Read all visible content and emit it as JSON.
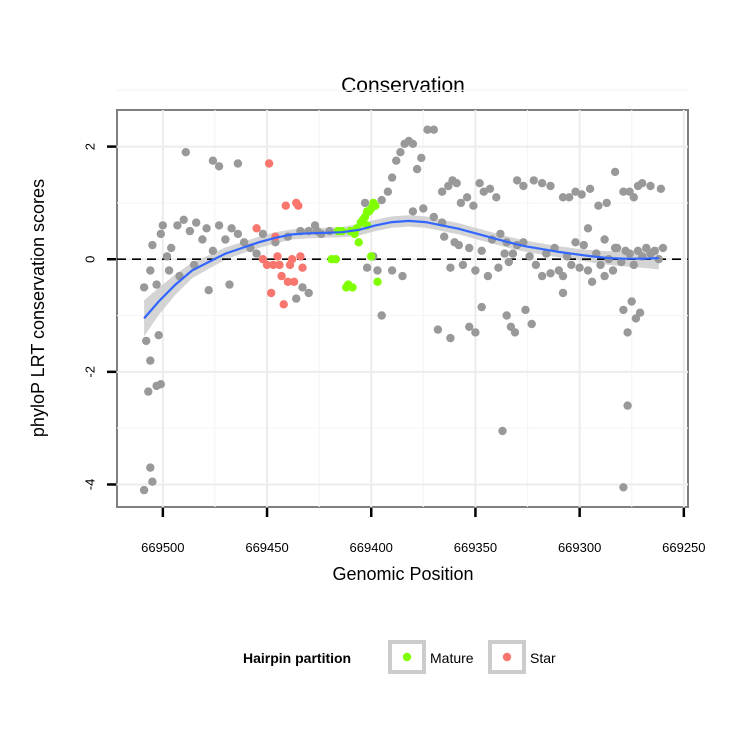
{
  "chart_data": {
    "type": "scatter",
    "title": "Conservation",
    "xlabel": "Genomic Position",
    "ylabel": "phyloP LRT conservation scores",
    "x_reversed": true,
    "xlim": [
      669522,
      669248
    ],
    "ylim": [
      -4.4,
      2.65
    ],
    "x_ticks": [
      669500,
      669450,
      669400,
      669350,
      669300,
      669250
    ],
    "y_ticks": [
      2,
      0,
      -2,
      -4
    ],
    "grid": true,
    "reference_line": {
      "y": 0,
      "style": "dashed"
    },
    "background_color": "#9a9a9a",
    "smooth_color": "#3366ff",
    "ribbon_color": "#cccccc",
    "legend": {
      "title": "Hairpin partition",
      "placement": "bottom",
      "items": [
        {
          "label": "Mature",
          "color": "#7fff00"
        },
        {
          "label": "Star",
          "color": "#f8766d"
        }
      ]
    },
    "series": [
      {
        "name": "",
        "color": "#999999",
        "points": [
          [
            669509,
            -4.1
          ],
          [
            669506,
            -3.7
          ],
          [
            669505,
            -3.95
          ],
          [
            669507,
            -2.35
          ],
          [
            669503,
            -2.25
          ],
          [
            669501,
            -2.22
          ],
          [
            669506,
            -1.8
          ],
          [
            669508,
            -1.45
          ],
          [
            669502,
            -1.35
          ],
          [
            669509,
            -0.5
          ],
          [
            669503,
            -0.45
          ],
          [
            669506,
            -0.2
          ],
          [
            669505,
            0.25
          ],
          [
            669501,
            0.45
          ],
          [
            669500,
            0.6
          ],
          [
            669498,
            0.05
          ],
          [
            669496,
            0.2
          ],
          [
            669493,
            0.6
          ],
          [
            669490,
            0.7
          ],
          [
            669487,
            0.5
          ],
          [
            669484,
            0.65
          ],
          [
            669481,
            0.35
          ],
          [
            669479,
            0.55
          ],
          [
            669476,
            0.15
          ],
          [
            669473,
            0.6
          ],
          [
            669470,
            0.35
          ],
          [
            669467,
            0.55
          ],
          [
            669464,
            0.45
          ],
          [
            669461,
            0.3
          ],
          [
            669458,
            0.2
          ],
          [
            669455,
            0.1
          ],
          [
            669497,
            -0.2
          ],
          [
            669492,
            -0.3
          ],
          [
            669485,
            -0.1
          ],
          [
            669478,
            -0.55
          ],
          [
            669468,
            -0.45
          ],
          [
            669489,
            1.9
          ],
          [
            669476,
            1.75
          ],
          [
            669473,
            1.65
          ],
          [
            669464,
            1.7
          ],
          [
            669452,
            0.45
          ],
          [
            669446,
            0.3
          ],
          [
            669440,
            0.4
          ],
          [
            669434,
            0.5
          ],
          [
            669430,
            0.5
          ],
          [
            669427,
            0.6
          ],
          [
            669424,
            0.45
          ],
          [
            669433,
            -0.5
          ],
          [
            669430,
            -0.6
          ],
          [
            669436,
            -0.7
          ],
          [
            669426,
            0.5
          ],
          [
            669420,
            0.5
          ],
          [
            669403,
            1.0
          ],
          [
            669402,
            -0.15
          ],
          [
            669399,
            0.05
          ],
          [
            669397,
            -0.2
          ],
          [
            669395,
            1.05
          ],
          [
            669392,
            1.2
          ],
          [
            669390,
            1.45
          ],
          [
            669388,
            1.75
          ],
          [
            669386,
            1.9
          ],
          [
            669384,
            2.05
          ],
          [
            669382,
            2.1
          ],
          [
            669380,
            2.05
          ],
          [
            669378,
            1.6
          ],
          [
            669376,
            1.8
          ],
          [
            669373,
            2.3
          ],
          [
            669370,
            2.3
          ],
          [
            669366,
            1.2
          ],
          [
            669363,
            1.3
          ],
          [
            669361,
            1.4
          ],
          [
            669359,
            1.35
          ],
          [
            669357,
            1.0
          ],
          [
            669354,
            1.1
          ],
          [
            669351,
            0.95
          ],
          [
            669348,
            1.35
          ],
          [
            669346,
            1.2
          ],
          [
            669343,
            1.25
          ],
          [
            669340,
            1.1
          ],
          [
            669338,
            0.45
          ],
          [
            669335,
            0.3
          ],
          [
            669332,
            0.1
          ],
          [
            669330,
            0.25
          ],
          [
            669327,
            0.3
          ],
          [
            669324,
            0.05
          ],
          [
            669321,
            -0.1
          ],
          [
            669318,
            -0.3
          ],
          [
            669316,
            0.1
          ],
          [
            669314,
            -0.25
          ],
          [
            669312,
            0.2
          ],
          [
            669310,
            -0.2
          ],
          [
            669308,
            -0.3
          ],
          [
            669306,
            0.05
          ],
          [
            669304,
            -0.1
          ],
          [
            669302,
            0.3
          ],
          [
            669300,
            -0.15
          ],
          [
            669298,
            0.25
          ],
          [
            669296,
            -0.2
          ],
          [
            669294,
            -0.4
          ],
          [
            669292,
            0.1
          ],
          [
            669290,
            -0.1
          ],
          [
            669288,
            -0.3
          ],
          [
            669286,
            0.0
          ],
          [
            669284,
            -0.2
          ],
          [
            669282,
            0.2
          ],
          [
            669280,
            -0.05
          ],
          [
            669278,
            0.15
          ],
          [
            669276,
            0.1
          ],
          [
            669274,
            -0.1
          ],
          [
            669272,
            0.15
          ],
          [
            669270,
            0.05
          ],
          [
            669268,
            0.2
          ],
          [
            669266,
            0.1
          ],
          [
            669264,
            0.15
          ],
          [
            669262,
            0.0
          ],
          [
            669260,
            0.2
          ],
          [
            669365,
            0.4
          ],
          [
            669362,
            -0.15
          ],
          [
            669360,
            0.3
          ],
          [
            669358,
            0.25
          ],
          [
            669356,
            -0.1
          ],
          [
            669353,
            0.2
          ],
          [
            669350,
            -0.2
          ],
          [
            669347,
            0.15
          ],
          [
            669344,
            -0.3
          ],
          [
            669342,
            0.35
          ],
          [
            669339,
            -0.15
          ],
          [
            669336,
            0.1
          ],
          [
            669334,
            -0.05
          ],
          [
            669390,
            -0.2
          ],
          [
            669385,
            -0.3
          ],
          [
            669380,
            0.85
          ],
          [
            669375,
            0.9
          ],
          [
            669370,
            0.75
          ],
          [
            669366,
            0.65
          ],
          [
            669368,
            -1.25
          ],
          [
            669362,
            -1.4
          ],
          [
            669353,
            -1.2
          ],
          [
            669350,
            -1.3
          ],
          [
            669347,
            -0.85
          ],
          [
            669335,
            -1.0
          ],
          [
            669333,
            -1.2
          ],
          [
            669331,
            -1.3
          ],
          [
            669326,
            -0.9
          ],
          [
            669323,
            -1.15
          ],
          [
            669337,
            -3.05
          ],
          [
            669308,
            -0.6
          ],
          [
            669296,
            0.55
          ],
          [
            669288,
            0.35
          ],
          [
            669283,
            0.2
          ],
          [
            669330,
            1.4
          ],
          [
            669327,
            1.3
          ],
          [
            669322,
            1.4
          ],
          [
            669318,
            1.35
          ],
          [
            669314,
            1.3
          ],
          [
            669308,
            1.1
          ],
          [
            669305,
            1.1
          ],
          [
            669302,
            1.2
          ],
          [
            669299,
            1.15
          ],
          [
            669295,
            1.25
          ],
          [
            669291,
            0.95
          ],
          [
            669287,
            1.0
          ],
          [
            669283,
            1.55
          ],
          [
            669279,
            1.2
          ],
          [
            669276,
            1.2
          ],
          [
            669274,
            1.1
          ],
          [
            669272,
            1.3
          ],
          [
            669270,
            1.35
          ],
          [
            669266,
            1.3
          ],
          [
            669261,
            1.25
          ],
          [
            669279,
            -0.9
          ],
          [
            669277,
            -1.3
          ],
          [
            669275,
            -0.75
          ],
          [
            669273,
            -1.05
          ],
          [
            669271,
            -0.95
          ],
          [
            669277,
            -2.6
          ],
          [
            669279,
            -4.05
          ],
          [
            669395,
            -1.0
          ]
        ]
      },
      {
        "name": "Mature",
        "color": "#7fff00",
        "points": [
          [
            669419,
            0.0
          ],
          [
            669417,
            0.0
          ],
          [
            669416,
            0.5
          ],
          [
            669414,
            0.5
          ],
          [
            669412,
            -0.5
          ],
          [
            669411,
            -0.45
          ],
          [
            669410,
            0.5
          ],
          [
            669409,
            -0.5
          ],
          [
            669408,
            0.45
          ],
          [
            669407,
            0.55
          ],
          [
            669405,
            0.65
          ],
          [
            669404,
            0.7
          ],
          [
            669403,
            0.75
          ],
          [
            669402,
            0.85
          ],
          [
            669401,
            0.85
          ],
          [
            669400,
            0.9
          ],
          [
            669399,
            1.0
          ],
          [
            669398,
            0.95
          ],
          [
            669406,
            0.3
          ],
          [
            669402,
            0.6
          ],
          [
            669400,
            0.05
          ],
          [
            669397,
            -0.4
          ]
        ]
      },
      {
        "name": "Star",
        "color": "#f8766d",
        "points": [
          [
            669455,
            0.55
          ],
          [
            669452,
            0.0
          ],
          [
            669450,
            -0.1
          ],
          [
            669449,
            1.7
          ],
          [
            669448,
            -0.6
          ],
          [
            669447,
            -0.1
          ],
          [
            669446,
            0.4
          ],
          [
            669445,
            0.05
          ],
          [
            669444,
            -0.1
          ],
          [
            669443,
            -0.3
          ],
          [
            669442,
            -0.8
          ],
          [
            669441,
            0.95
          ],
          [
            669440,
            -0.4
          ],
          [
            669439,
            -0.1
          ],
          [
            669438,
            0.0
          ],
          [
            669437,
            -0.4
          ],
          [
            669436,
            1.0
          ],
          [
            669435,
            0.95
          ],
          [
            669434,
            0.05
          ],
          [
            669433,
            -0.15
          ]
        ]
      }
    ],
    "smooth": [
      [
        669509,
        -1.05
      ],
      [
        669502,
        -0.75
      ],
      [
        669494,
        -0.45
      ],
      [
        669486,
        -0.2
      ],
      [
        669478,
        -0.05
      ],
      [
        669470,
        0.1
      ],
      [
        669462,
        0.2
      ],
      [
        669454,
        0.3
      ],
      [
        669446,
        0.38
      ],
      [
        669438,
        0.44
      ],
      [
        669430,
        0.46
      ],
      [
        669422,
        0.47
      ],
      [
        669414,
        0.48
      ],
      [
        669406,
        0.52
      ],
      [
        669398,
        0.6
      ],
      [
        669390,
        0.66
      ],
      [
        669382,
        0.68
      ],
      [
        669374,
        0.66
      ],
      [
        669366,
        0.6
      ],
      [
        669358,
        0.54
      ],
      [
        669350,
        0.46
      ],
      [
        669342,
        0.38
      ],
      [
        669334,
        0.3
      ],
      [
        669326,
        0.23
      ],
      [
        669318,
        0.18
      ],
      [
        669310,
        0.13
      ],
      [
        669302,
        0.09
      ],
      [
        669294,
        0.05
      ],
      [
        669286,
        0.02
      ],
      [
        669278,
        0.01
      ],
      [
        669270,
        0.01
      ],
      [
        669262,
        0.02
      ]
    ],
    "smooth_se": [
      0.32,
      0.24,
      0.18,
      0.14,
      0.12,
      0.11,
      0.1,
      0.1,
      0.1,
      0.09,
      0.09,
      0.09,
      0.09,
      0.1,
      0.1,
      0.1,
      0.1,
      0.1,
      0.1,
      0.1,
      0.1,
      0.1,
      0.1,
      0.1,
      0.1,
      0.1,
      0.1,
      0.11,
      0.12,
      0.14,
      0.16,
      0.2
    ]
  }
}
